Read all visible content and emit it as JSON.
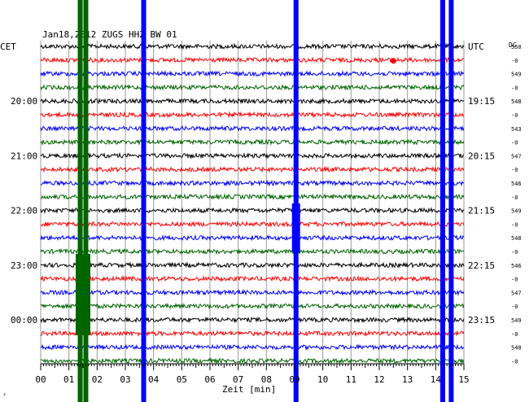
{
  "chart_data": {
    "type": "line",
    "title": "Jan18,2012   ZUGS  HHZ BW 01",
    "left_timezone": "CET",
    "right_timezone": "UTC",
    "dc_label": "DC",
    "xlabel": "Zeit [min]",
    "xlim": [
      0,
      15
    ],
    "x_ticks": [
      "00",
      "01",
      "02",
      "03",
      "04",
      "05",
      "06",
      "07",
      "08",
      "09",
      "10",
      "11",
      "12",
      "13",
      "14",
      "15"
    ],
    "trace_colors": [
      "#000000",
      "#ff0000",
      "#0000ff",
      "#006400"
    ],
    "trace_count": 24,
    "left_hour_labels": [
      {
        "label": "20:00",
        "row": 4
      },
      {
        "label": "21:00",
        "row": 8
      },
      {
        "label": "22:00",
        "row": 12
      },
      {
        "label": "23:00",
        "row": 16
      },
      {
        "label": "00:00",
        "row": 20
      }
    ],
    "right_hour_labels": [
      {
        "label": "UTC",
        "row": 0
      },
      {
        "label": "19:15",
        "row": 4
      },
      {
        "label": "20:15",
        "row": 8
      },
      {
        "label": "21:15",
        "row": 12
      },
      {
        "label": "22:15",
        "row": 16
      },
      {
        "label": "23:15",
        "row": 20
      }
    ],
    "dc_values": [
      "550",
      "-0",
      "549",
      "-0",
      "548",
      "-0",
      "543",
      "-0",
      "547",
      "-0",
      "546",
      "-0",
      "549",
      "-0",
      "548",
      "-0",
      "546",
      "-0",
      "547",
      "-0",
      "549",
      "-0",
      "548",
      "-0"
    ],
    "vertical_events": [
      {
        "minute": 1.4,
        "color": "#006400"
      },
      {
        "minute": 1.6,
        "color": "#006400"
      },
      {
        "minute": 3.65,
        "color": "#0000ff"
      },
      {
        "minute": 9.05,
        "color": "#0000ff"
      },
      {
        "minute": 14.25,
        "color": "#0000ff"
      },
      {
        "minute": 14.55,
        "color": "#0000ff"
      }
    ],
    "corner_mark": "›"
  }
}
